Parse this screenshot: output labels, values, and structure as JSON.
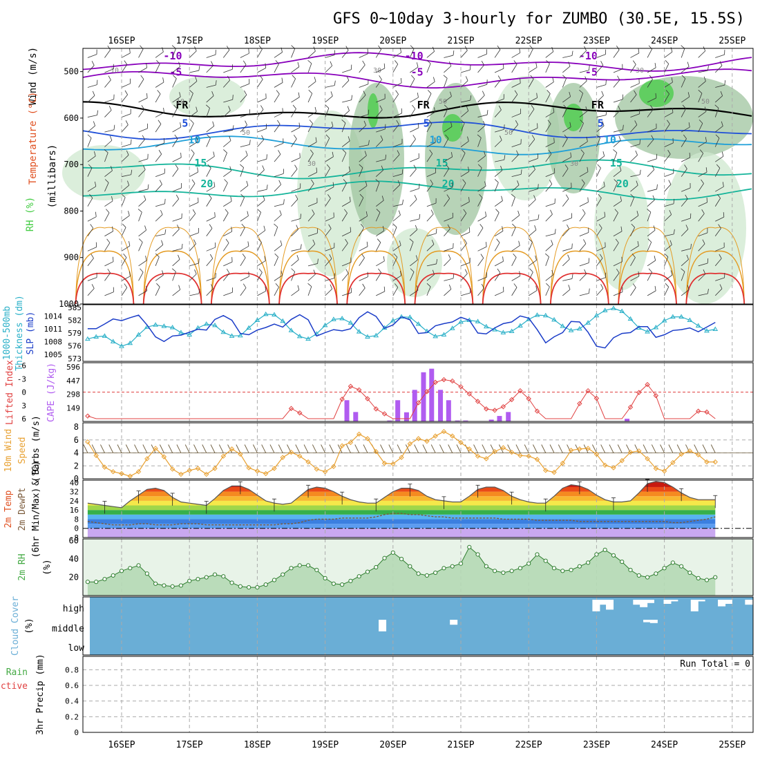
{
  "chart_data": {
    "type": "meteogram",
    "title": "GFS 0~10day 3-hourly for ZUMBO (30.5E, 15.5S)",
    "dates": [
      "16SEP",
      "17SEP",
      "18SEP",
      "19SEP",
      "20SEP",
      "21SEP",
      "22SEP",
      "23SEP",
      "24SEP",
      "25SEP"
    ],
    "colors": {
      "rh_fill": "#cfe8cf",
      "rh_dark": "#9fc49f",
      "rh_green": "#44cc44",
      "temp_purple": "#8800bb",
      "temp_blue": "#1f4fd8",
      "temp_lightblue": "#1e9fd8",
      "temp_teal": "#14b49a",
      "temp_orange": "#e49a20",
      "temp_red": "#e03030",
      "thickness": "#2ab0c8",
      "slp": "#1a3cc8",
      "cape": "#b05cf0",
      "lifted": "#e04040",
      "wind": "#e8a030",
      "barb": "#6b5a3a",
      "rh2m": "#44aa44",
      "cloud_bg": "#6aaed6",
      "grid": "#aaaaaa"
    },
    "upper_panel": {
      "ylabel_parts": [
        "RH (%)",
        "Temperature (°C)",
        "Wind (m/s)"
      ],
      "yunit": "(millibars)",
      "yticks": [
        "500",
        "600",
        "700",
        "800",
        "900",
        "1000"
      ],
      "ylim": [
        450,
        1000
      ],
      "isotherms": [
        {
          "label": "-10",
          "pressure": 480
        },
        {
          "label": "-5",
          "pressure": 515
        },
        {
          "label": "FR",
          "pressure": 585
        },
        {
          "label": "5",
          "pressure": 625
        },
        {
          "label": "10",
          "pressure": 660
        },
        {
          "label": "15",
          "pressure": 710
        },
        {
          "label": "20",
          "pressure": 755
        }
      ],
      "rh_labels": [
        "10",
        "10",
        "50",
        "30",
        "30",
        "50",
        "50",
        "30",
        "30",
        "50"
      ]
    },
    "slp_panel": {
      "ylabel": [
        "1000-500mb",
        "Thickness (dm)",
        "SLP (mb)"
      ],
      "left_ticks": [
        "585",
        "582",
        "579",
        "576",
        "573"
      ],
      "left_range": [
        573,
        585
      ],
      "right_ticks": [
        "1014",
        "1011",
        "1008",
        "1005"
      ],
      "right_range": [
        1004,
        1016
      ],
      "thickness": [
        577.6,
        578.1,
        578.3,
        577.0,
        575.9,
        576.6,
        578.6,
        580.4,
        580.9,
        580.6,
        580.3,
        579.1,
        578.6,
        580.2,
        581.1,
        580.8,
        579.2,
        578.3,
        578.4,
        580.2,
        582.0,
        583.4,
        583.3,
        581.8,
        579.6,
        578.2,
        577.6,
        578.8,
        580.8,
        582.2,
        582.4,
        581.4,
        579.3,
        578.1,
        578.4,
        580.2,
        581.9,
        582.8,
        582.7,
        581.1,
        579.4,
        578.2,
        578.6,
        580.1,
        581.6,
        582.0,
        581.7,
        580.5,
        579.8,
        579.1,
        579.4,
        580.7,
        582.2,
        583.2,
        583.1,
        582.1,
        580.6,
        579.6,
        580.0,
        581.4,
        583.1,
        584.3,
        584.8,
        584.1,
        582.3,
        580.2,
        579.3,
        580.3,
        581.9,
        582.8,
        582.8,
        582.0,
        580.7,
        579.5,
        579.9
      ],
      "slp": [
        1011.0,
        1011.0,
        1012.1,
        1013.3,
        1012.9,
        1013.6,
        1014.2,
        1011.9,
        1009.1,
        1008.0,
        1009.3,
        1009.5,
        1010.2,
        1010.9,
        1010.7,
        1013.2,
        1014.1,
        1013.0,
        1009.9,
        1009.6,
        1010.7,
        1011.3,
        1012.1,
        1011.4,
        1013.2,
        1014.3,
        1013.1,
        1009.3,
        1010.1,
        1010.8,
        1010.5,
        1011.0,
        1013.6,
        1015.0,
        1013.9,
        1011.1,
        1011.9,
        1013.8,
        1013.1,
        1009.9,
        1010.1,
        1011.7,
        1012.2,
        1012.6,
        1013.7,
        1013.0,
        1010.0,
        1009.8,
        1011.2,
        1012.2,
        1012.6,
        1014.0,
        1013.5,
        1010.8,
        1007.7,
        1009.1,
        1010.1,
        1012.7,
        1012.6,
        1010.2,
        1006.9,
        1006.5,
        1008.9,
        1009.9,
        1010.1,
        1011.5,
        1011.5,
        1009.0,
        1009.6,
        1010.6,
        1010.8,
        1011.2,
        1010.3,
        1011.4,
        1012.5
      ]
    },
    "cape_panel": {
      "ylabel": [
        "Lifted Index",
        "CAPE (J/kg)"
      ],
      "left_ticks": [
        "-6",
        "-3",
        "0",
        "3",
        "6"
      ],
      "left_range": [
        -6,
        6
      ],
      "right_ticks": [
        "596",
        "447",
        "298",
        "149"
      ],
      "right_range": [
        0,
        596
      ],
      "cape": [
        0,
        0,
        0,
        0,
        0,
        0,
        0,
        0,
        0,
        0,
        0,
        0,
        0,
        0,
        0,
        0,
        0,
        0,
        0,
        0,
        0,
        0,
        0,
        0,
        0,
        0,
        0,
        0,
        0,
        0,
        0,
        0,
        0,
        0,
        0,
        0,
        0,
        0,
        0,
        0,
        0,
        0,
        0,
        0,
        0,
        0,
        0,
        0,
        0,
        0,
        0,
        0,
        0,
        0,
        0,
        0,
        0,
        0,
        0,
        0,
        0,
        0,
        0,
        0,
        0,
        0,
        0,
        0,
        0,
        0,
        0,
        0,
        0,
        0,
        0
      ],
      "cape_bars": [
        {
          "day": 3.32,
          "value": 232
        },
        {
          "day": 3.45,
          "value": 103
        },
        {
          "day": 3.85,
          "value": 0
        },
        {
          "day": 3.95,
          "value": 10
        },
        {
          "day": 4.07,
          "value": 232
        },
        {
          "day": 4.2,
          "value": 100
        },
        {
          "day": 4.32,
          "value": 345
        },
        {
          "day": 4.45,
          "value": 537
        },
        {
          "day": 4.57,
          "value": 576
        },
        {
          "day": 4.7,
          "value": 345
        },
        {
          "day": 4.82,
          "value": 232
        },
        {
          "day": 4.95,
          "value": 10
        },
        {
          "day": 5.07,
          "value": 10
        },
        {
          "day": 5.45,
          "value": 20
        },
        {
          "day": 5.57,
          "value": 60
        },
        {
          "day": 5.7,
          "value": 103
        },
        {
          "day": 7.45,
          "value": 30
        }
      ],
      "lifted_index": [
        5.4,
        6,
        6,
        6,
        6,
        6,
        6,
        6,
        6,
        6,
        6,
        6,
        6,
        6,
        6,
        6,
        6,
        6,
        6,
        6,
        6,
        6,
        6,
        6,
        3.7,
        4.7,
        6,
        6,
        6,
        6,
        1.6,
        -1.3,
        -0.5,
        1.5,
        3.8,
        4.9,
        6,
        6,
        6,
        2.4,
        -0.1,
        -2.2,
        -2.8,
        -2.5,
        -1.2,
        0.4,
        2.1,
        3.8,
        4.1,
        3.3,
        1.7,
        -0.3,
        1.5,
        4.3,
        6,
        6,
        6,
        6,
        2.6,
        -0.3,
        1.4,
        6,
        6,
        6,
        3.4,
        0.1,
        -1.7,
        0.8,
        6,
        6,
        6,
        6,
        4.3,
        4.5,
        6
      ]
    },
    "wind_panel": {
      "ylabel": [
        "10m Wind",
        "Speed",
        "& Barbs (m/s)"
      ],
      "yticks": [
        "8",
        "6",
        "4",
        "2",
        "0"
      ],
      "ylim": [
        0,
        8
      ],
      "speed": [
        5.7,
        3.6,
        1.8,
        1.1,
        0.8,
        0.4,
        1.1,
        3.1,
        4.7,
        3.4,
        1.5,
        0.7,
        1.3,
        1.6,
        0.7,
        1.6,
        3.5,
        4.6,
        3.8,
        1.7,
        1.2,
        0.8,
        1.6,
        3.3,
        4.1,
        3.5,
        2.6,
        1.5,
        1.1,
        1.9,
        5.1,
        5.6,
        6.9,
        6.2,
        4.2,
        2.4,
        2.3,
        3.3,
        5.4,
        6.2,
        5.8,
        6.6,
        7.3,
        6.6,
        5.6,
        4.6,
        3.5,
        3.1,
        4.2,
        4.8,
        4.1,
        3.6,
        3.5,
        3.0,
        1.3,
        1.0,
        2.4,
        4.4,
        4.6,
        4.7,
        3.8,
        2.1,
        1.7,
        2.8,
        4.1,
        4.3,
        3.1,
        1.6,
        1.2,
        2.5,
        3.8,
        4.3,
        3.7,
        2.6,
        2.6
      ]
    },
    "temp_panel": {
      "ylabel": [
        "2m Temp",
        "2m DewPt",
        "(6hr Min/Max) (°C)"
      ],
      "yticks": [
        "40",
        "32",
        "24",
        "16",
        "8",
        "0",
        "-8"
      ],
      "ylim": [
        -8,
        42
      ],
      "temp": [
        22,
        21,
        20,
        19,
        18,
        24,
        29,
        34,
        35,
        33,
        27,
        23,
        22,
        21,
        20,
        26,
        33,
        37,
        37,
        34,
        29,
        24,
        22,
        21,
        22,
        28,
        34,
        36,
        35,
        32,
        28,
        25,
        23,
        22,
        22,
        27,
        32,
        35,
        35,
        33,
        28,
        25,
        24,
        23,
        23,
        28,
        34,
        36,
        36,
        33,
        28,
        25,
        23,
        22,
        22,
        28,
        35,
        38,
        37,
        34,
        29,
        25,
        23,
        23,
        24,
        31,
        39,
        41,
        40,
        36,
        31,
        27,
        25,
        25,
        25
      ],
      "dewpoint": [
        6,
        5,
        4,
        3,
        3,
        3,
        4,
        4,
        3,
        3,
        3,
        4,
        4,
        4,
        3,
        3,
        3,
        3,
        3,
        3,
        3,
        3,
        3,
        4,
        4,
        5,
        7,
        8,
        8,
        8,
        9,
        9,
        9,
        9,
        10,
        12,
        13,
        13,
        12,
        12,
        11,
        10,
        10,
        9,
        9,
        9,
        9,
        9,
        9,
        8,
        8,
        8,
        8,
        7,
        7,
        7,
        7,
        7,
        6,
        6,
        6,
        6,
        6,
        6,
        6,
        6,
        6,
        6,
        6,
        5,
        5,
        6,
        7,
        8,
        10
      ]
    },
    "rh_panel": {
      "ylabel": [
        "2m RH",
        "(%)"
      ],
      "yticks": [
        "60",
        "40",
        "20"
      ],
      "ylim": [
        0,
        62
      ],
      "rh": [
        15,
        15,
        18,
        22,
        27,
        30,
        33,
        24,
        13,
        11,
        10,
        11,
        16,
        18,
        20,
        23,
        21,
        14,
        10,
        9,
        9,
        12,
        17,
        23,
        30,
        33,
        33,
        28,
        19,
        13,
        12,
        16,
        21,
        26,
        31,
        41,
        47,
        40,
        32,
        24,
        22,
        25,
        30,
        32,
        35,
        53,
        45,
        32,
        27,
        25,
        27,
        30,
        35,
        45,
        38,
        30,
        27,
        28,
        32,
        36,
        45,
        50,
        44,
        37,
        28,
        22,
        20,
        24,
        30,
        36,
        32,
        25,
        19,
        17,
        20
      ]
    },
    "cloud_panel": {
      "ylabel": [
        "Cloud Cover",
        "(%)"
      ],
      "yticks": [
        "high",
        "middle",
        "low"
      ],
      "bars": [
        {
          "day": 3.85,
          "level": "middle",
          "value": 0.7
        },
        {
          "day": 4.9,
          "level": "middle",
          "value": 0.3
        },
        {
          "day": 7.0,
          "level": "high",
          "value": 0.7
        },
        {
          "day": 7.1,
          "level": "high",
          "value": 0.3
        },
        {
          "day": 7.2,
          "level": "high",
          "value": 0.6
        },
        {
          "day": 7.6,
          "level": "high",
          "value": 0.3
        },
        {
          "day": 7.7,
          "level": "high",
          "value": 0.45
        },
        {
          "day": 7.8,
          "level": "high",
          "value": 0.2
        },
        {
          "day": 7.75,
          "level": "middle",
          "value": 0.15
        },
        {
          "day": 7.85,
          "level": "middle",
          "value": 0.2
        },
        {
          "day": 8.05,
          "level": "high",
          "value": 0.25
        },
        {
          "day": 8.15,
          "level": "high",
          "value": 0.1
        },
        {
          "day": 8.45,
          "level": "high",
          "value": 0.7
        },
        {
          "day": 8.55,
          "level": "high",
          "value": 0.1
        },
        {
          "day": 8.85,
          "level": "high",
          "value": 0.4
        },
        {
          "day": 8.95,
          "level": "high",
          "value": 0.25
        },
        {
          "day": 9.25,
          "level": "high",
          "value": 0.3
        }
      ]
    },
    "precip_panel": {
      "ylabel_left": [
        "Total / Rain",
        "Convective"
      ],
      "ylabel": "3hr Precip (mm)",
      "yticks": [
        "0.8",
        "0.6",
        "0.4",
        "0.2",
        "0"
      ],
      "ylim": [
        0,
        0.9
      ],
      "run_total": "Run Total = 0"
    }
  }
}
